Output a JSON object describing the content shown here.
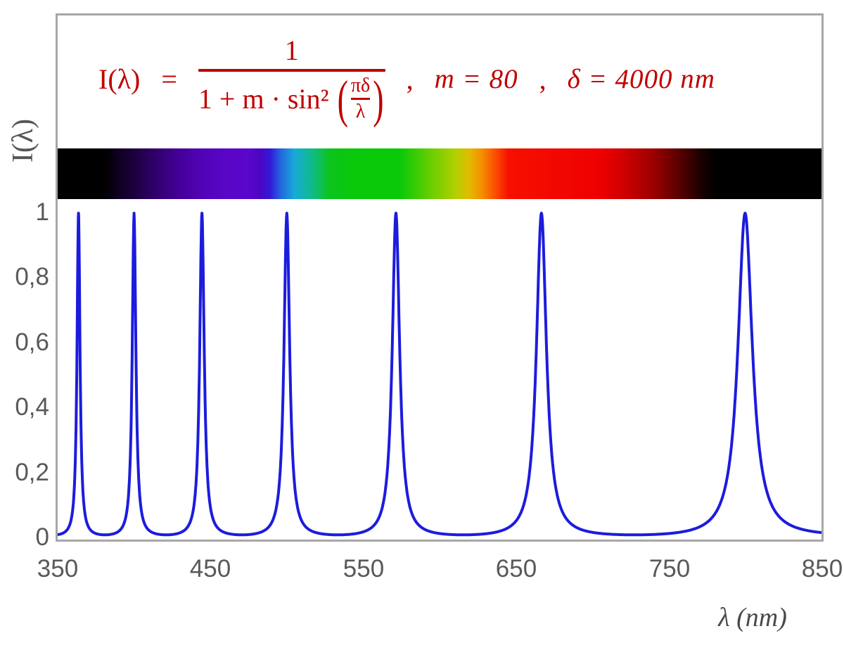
{
  "formula": {
    "lhs": "I(λ)",
    "eq": "=",
    "numerator": "1",
    "denominator_prefix": "1 + m · sin²",
    "inner_numerator": "πδ",
    "inner_denominator": "λ",
    "open_paren": "(",
    "close_paren": ")",
    "sep1": ",",
    "param_m": "m = 80",
    "sep2": ",",
    "param_delta": "δ = 4000 nm",
    "color": "#c00000"
  },
  "axes": {
    "y_title": "I(λ)",
    "x_title": "λ  (nm)",
    "y_ticks": [
      "1",
      "0,8",
      "0,6",
      "0,4",
      "0,2",
      "0"
    ],
    "x_ticks": [
      "350",
      "450",
      "550",
      "650",
      "750",
      "850"
    ]
  },
  "chart_data": {
    "type": "line",
    "title": "I(λ) = 1 / (1 + m·sin²(πδ/λ)) ,  m = 80 ,  δ = 4000 nm",
    "xlabel": "λ (nm)",
    "ylabel": "I(λ)",
    "x_range": [
      350,
      850
    ],
    "ylim": [
      0,
      1
    ],
    "x_ticks": [
      350,
      450,
      550,
      650,
      750,
      850
    ],
    "y_ticks": [
      0,
      0.2,
      0.4,
      0.6,
      0.8,
      1
    ],
    "y_tick_labels": [
      "0",
      "0,2",
      "0,4",
      "0,6",
      "0,8",
      "1"
    ],
    "grid": false,
    "legend": null,
    "function": {
      "form": "I(lambda) = 1 / (1 + m * sin(pi*delta/lambda)^2)",
      "m": 80,
      "delta_nm": 4000
    },
    "peaks_nm": [
      363.64,
      400,
      444.44,
      500,
      571.43,
      666.67,
      800
    ],
    "peak_value": 1,
    "baseline_value": 0.0123,
    "curve_color": "#1c1cdd",
    "curve_width": 4,
    "frame_color": "#a7a7a7",
    "spectrum_bar": {
      "description": "visible-spectrum strip aligned to wavelength axis, black outside ~380-780 nm",
      "stops": [
        [
          350,
          "#000000"
        ],
        [
          380,
          "#000000"
        ],
        [
          390,
          "#0e001f"
        ],
        [
          400,
          "#1c003e"
        ],
        [
          415,
          "#32006f"
        ],
        [
          430,
          "#44009a"
        ],
        [
          445,
          "#5103b8"
        ],
        [
          460,
          "#5a06c6"
        ],
        [
          475,
          "#5a06cc"
        ],
        [
          483,
          "#4a07c2"
        ],
        [
          489,
          "#3318d8"
        ],
        [
          496,
          "#2366df"
        ],
        [
          505,
          "#18aad8"
        ],
        [
          517,
          "#0fbc86"
        ],
        [
          528,
          "#0cc41c"
        ],
        [
          545,
          "#09c909"
        ],
        [
          574,
          "#09c909"
        ],
        [
          593,
          "#63ce00"
        ],
        [
          611,
          "#b5cf00"
        ],
        [
          620,
          "#e4b900"
        ],
        [
          628,
          "#f68c00"
        ],
        [
          637,
          "#fb4a00"
        ],
        [
          645,
          "#f61000"
        ],
        [
          705,
          "#ee0000"
        ],
        [
          720,
          "#d00000"
        ],
        [
          740,
          "#9c0000"
        ],
        [
          755,
          "#600000"
        ],
        [
          765,
          "#360000"
        ],
        [
          773,
          "#140000"
        ],
        [
          781,
          "#000000"
        ],
        [
          850,
          "#000000"
        ]
      ]
    }
  }
}
